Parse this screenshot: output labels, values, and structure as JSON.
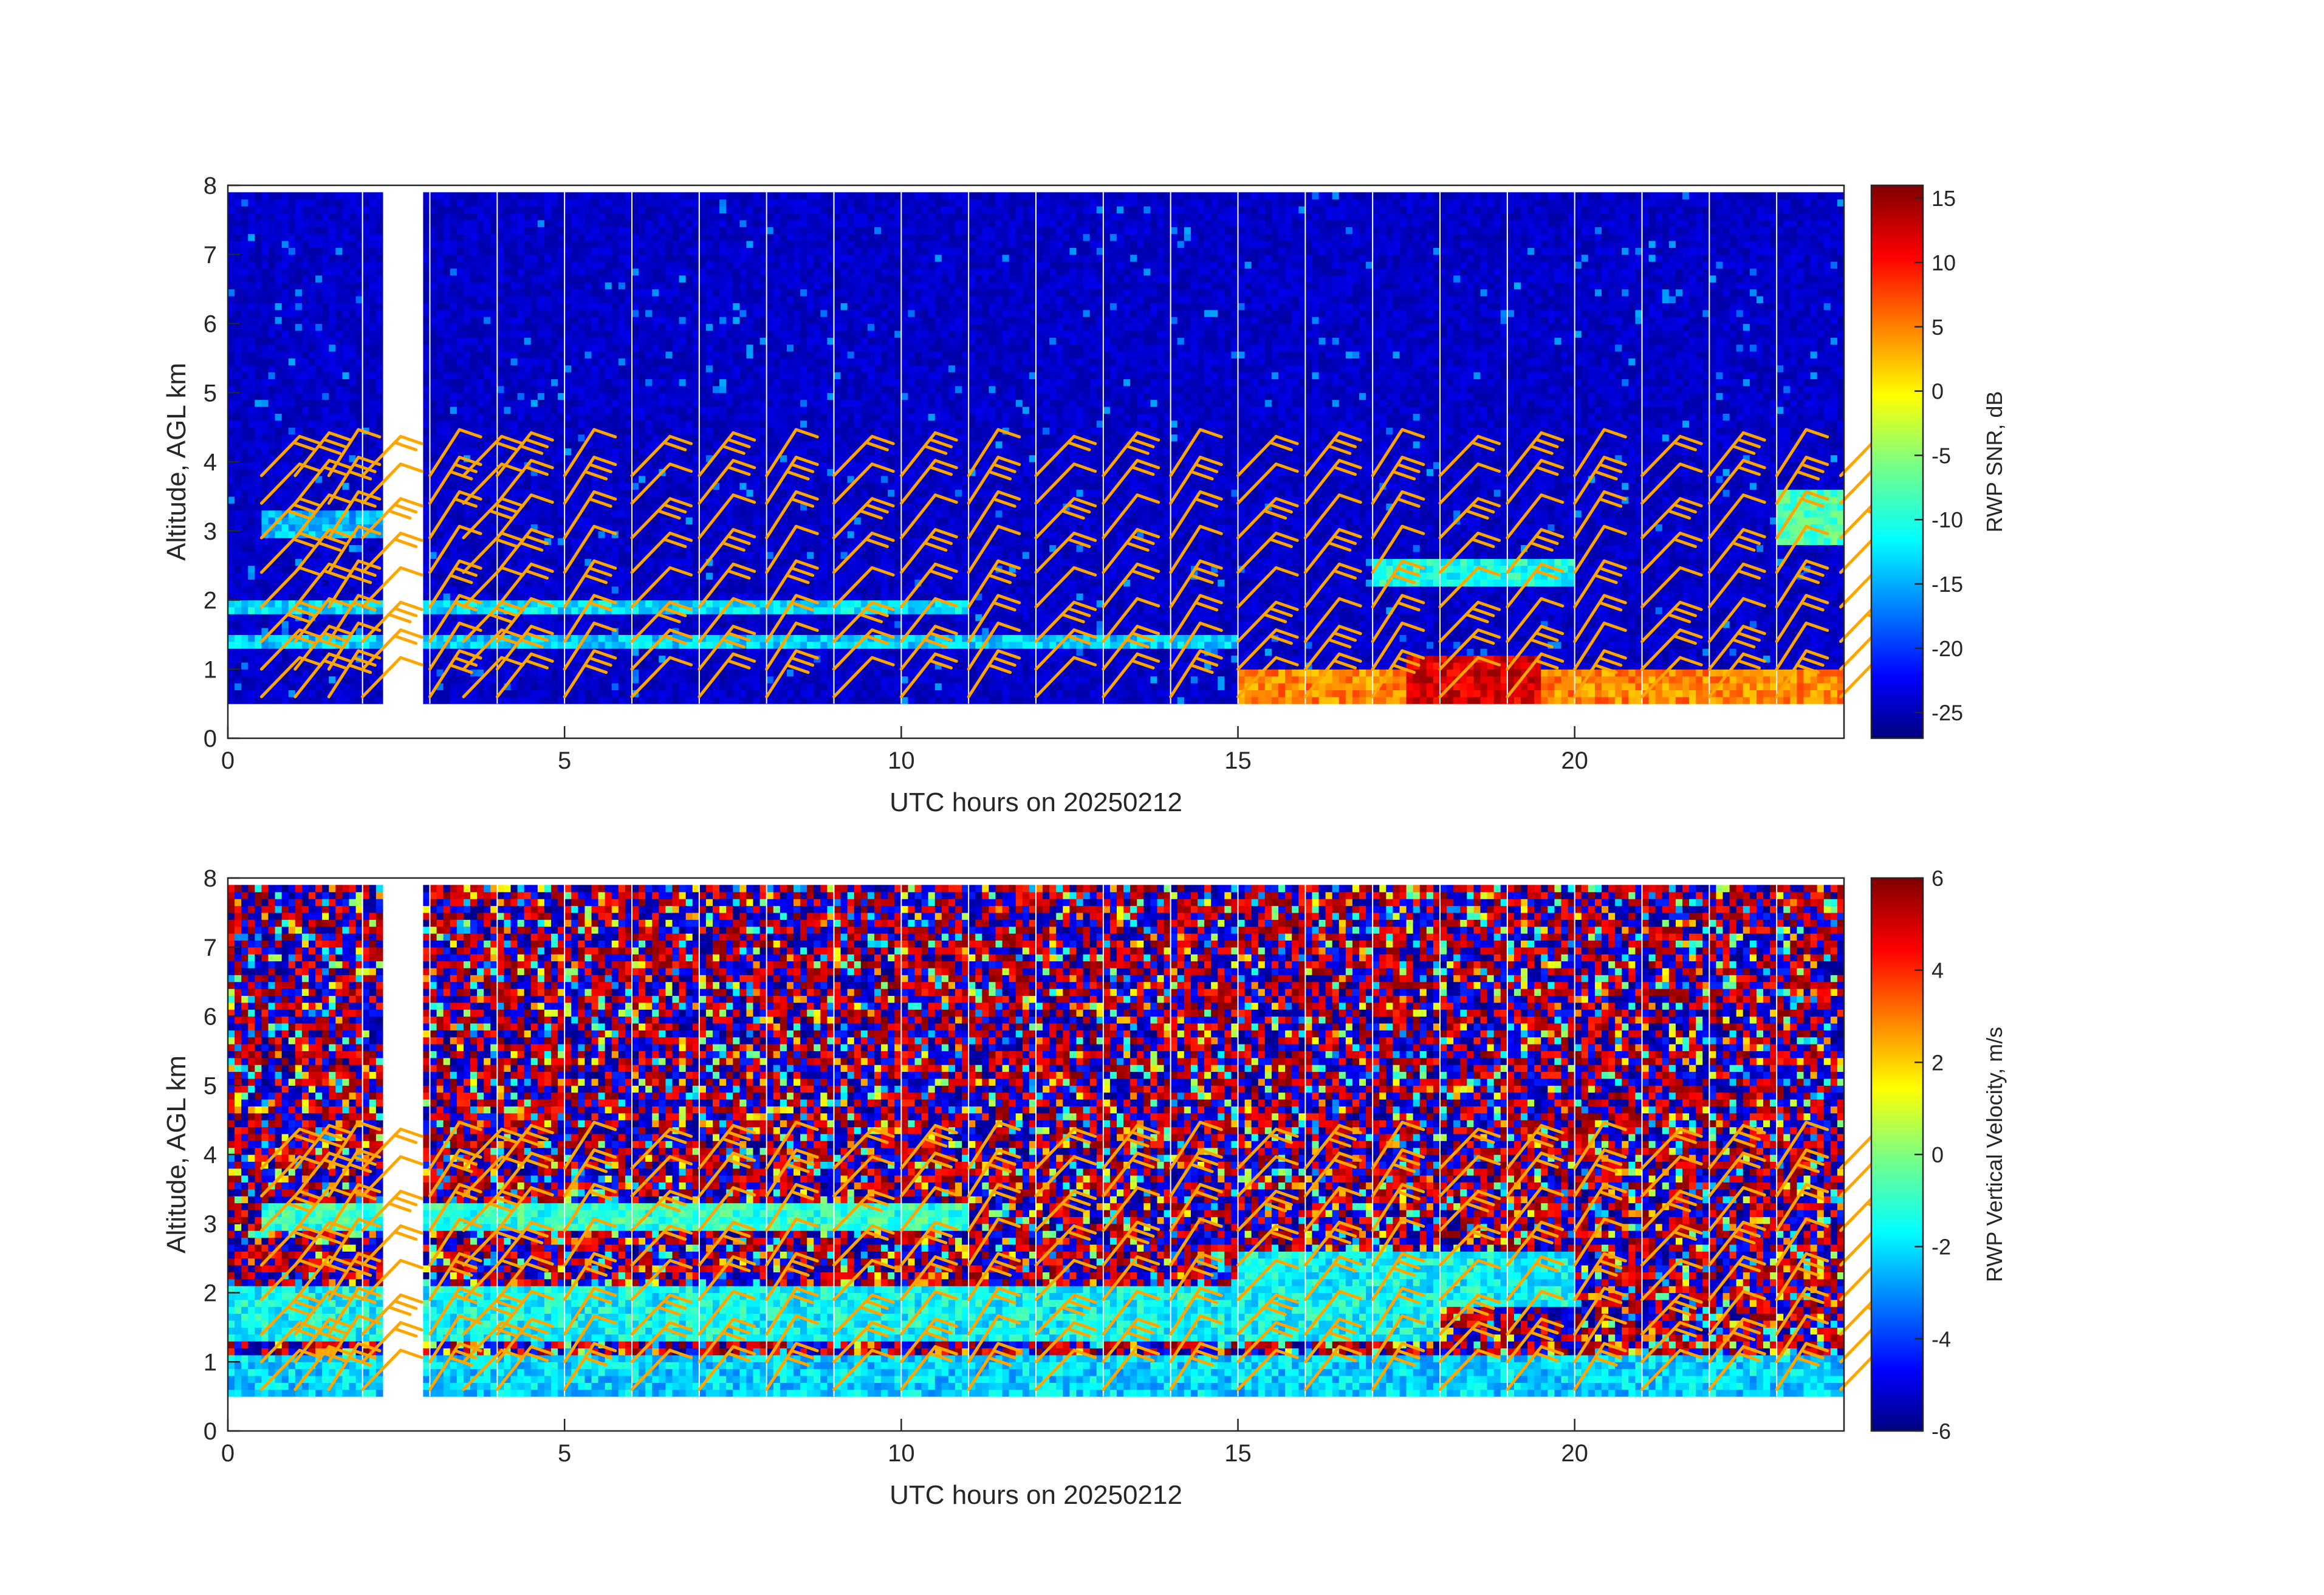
{
  "chart_data": [
    {
      "type": "heatmap",
      "variable": "RWP SNR",
      "xlabel": "UTC hours on 20250212",
      "ylabel": "Altitude, AGL km",
      "colorbar_label": "RWP SNR, dB",
      "xlim": [
        0,
        24
      ],
      "ylim": [
        0,
        8
      ],
      "xticks": [
        0,
        5,
        10,
        15,
        20
      ],
      "yticks": [
        0,
        1,
        2,
        3,
        4,
        5,
        6,
        7,
        8
      ],
      "clim": [
        -27,
        16
      ],
      "cticks": [
        -25,
        -20,
        -15,
        -10,
        -5,
        0,
        5,
        10,
        15
      ],
      "colormap": "jet",
      "data_altitude_range_km": [
        0.5,
        7.9
      ],
      "data_gap_hours": [
        2.4,
        2.85
      ],
      "background_value": -24,
      "features": [
        {
          "desc": "low-level high SNR",
          "x": [
            15,
            24
          ],
          "y": [
            0.5,
            1.0
          ],
          "value": 5
        },
        {
          "desc": "strong echo core",
          "x": [
            17.5,
            19.5
          ],
          "y": [
            0.5,
            1.2
          ],
          "value": 12
        },
        {
          "desc": "layer",
          "x": [
            0,
            11
          ],
          "y": [
            1.8,
            2.0
          ],
          "value": -12
        },
        {
          "desc": "layer",
          "x": [
            0,
            15
          ],
          "y": [
            1.3,
            1.5
          ],
          "value": -13
        },
        {
          "desc": "layer",
          "x": [
            0.5,
            2.5
          ],
          "y": [
            2.9,
            3.3
          ],
          "value": -14
        },
        {
          "desc": "layer",
          "x": [
            17,
            20
          ],
          "y": [
            2.2,
            2.6
          ],
          "value": -10
        },
        {
          "desc": "upper feature",
          "x": [
            23,
            24
          ],
          "y": [
            2.8,
            3.6
          ],
          "value": -8
        }
      ]
    },
    {
      "type": "heatmap",
      "variable": "RWP Vertical Velocity",
      "xlabel": "UTC hours on 20250212",
      "ylabel": "Altitude, AGL km",
      "colorbar_label": "RWP Vertical Velocity, m/s",
      "xlim": [
        0,
        24
      ],
      "ylim": [
        0,
        8
      ],
      "xticks": [
        0,
        5,
        10,
        15,
        20
      ],
      "yticks": [
        0,
        1,
        2,
        3,
        4,
        5,
        6,
        7,
        8
      ],
      "clim": [
        -6,
        6
      ],
      "cticks": [
        -6,
        -4,
        -2,
        0,
        2,
        4,
        6
      ],
      "colormap": "jet",
      "data_altitude_range_km": [
        0.5,
        7.9
      ],
      "data_gap_hours": [
        2.4,
        2.85
      ],
      "background": "noise alternating between -6 and 6 m/s",
      "features": [
        {
          "desc": "near-zero to slight downward motion",
          "x": [
            0,
            24
          ],
          "y": [
            0.5,
            1.1
          ],
          "value": -2
        },
        {
          "desc": "weak downward layer",
          "x": [
            0,
            18
          ],
          "y": [
            1.3,
            2.1
          ],
          "value": -1.5
        },
        {
          "desc": "weak downward layer",
          "x": [
            15,
            20
          ],
          "y": [
            1.8,
            2.6
          ],
          "value": -1.5
        },
        {
          "desc": "upper layer",
          "x": [
            0.5,
            11
          ],
          "y": [
            2.9,
            3.3
          ],
          "value": -1
        }
      ]
    }
  ],
  "wind_barbs": {
    "color": "#ffa500",
    "times_hours": [
      0.5,
      1,
      1.5,
      2,
      2.5,
      3,
      3.5,
      4,
      5,
      6,
      7,
      8,
      9,
      10,
      11,
      12,
      13,
      14,
      15,
      16,
      17,
      18,
      19,
      20,
      21,
      22,
      23,
      24
    ],
    "altitudes_km": [
      0.6,
      1.0,
      1.4,
      1.9,
      2.4,
      2.9,
      3.4,
      3.8
    ]
  }
}
